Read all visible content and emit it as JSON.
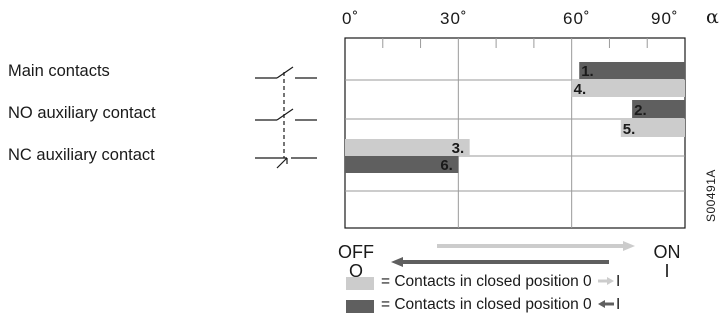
{
  "axis": {
    "ticks": [
      "0˚",
      "30˚",
      "60˚",
      "90˚"
    ],
    "symbol": "α"
  },
  "rows": [
    {
      "label": "Main contacts"
    },
    {
      "label": "NO auxiliary contact"
    },
    {
      "label": "NC auxiliary contact"
    }
  ],
  "bars": [
    {
      "id": "1.",
      "start": 62,
      "end": 90,
      "shade": "dark"
    },
    {
      "id": "4.",
      "start": 60,
      "end": 90,
      "shade": "light"
    },
    {
      "id": "2.",
      "start": 76,
      "end": 90,
      "shade": "dark"
    },
    {
      "id": "5.",
      "start": 73,
      "end": 90,
      "shade": "light"
    },
    {
      "id": "3.",
      "start": 0,
      "end": 33,
      "shade": "light"
    },
    {
      "id": "6.",
      "start": 0,
      "end": 30,
      "shade": "dark"
    }
  ],
  "states": {
    "off": "OFF",
    "off_symbol": "O",
    "on": "ON",
    "on_symbol": "I"
  },
  "legend": [
    {
      "text": "= Contacts in closed position 0",
      "end": "I",
      "shade": "light"
    },
    {
      "text": "= Contacts in closed position 0",
      "end": "I",
      "shade": "dark"
    }
  ],
  "code": "S00491A",
  "colors": {
    "light": "#cccccc",
    "dark": "#5f5f5f",
    "grid": "#9a9a9a",
    "ink": "#1a1a1a"
  }
}
